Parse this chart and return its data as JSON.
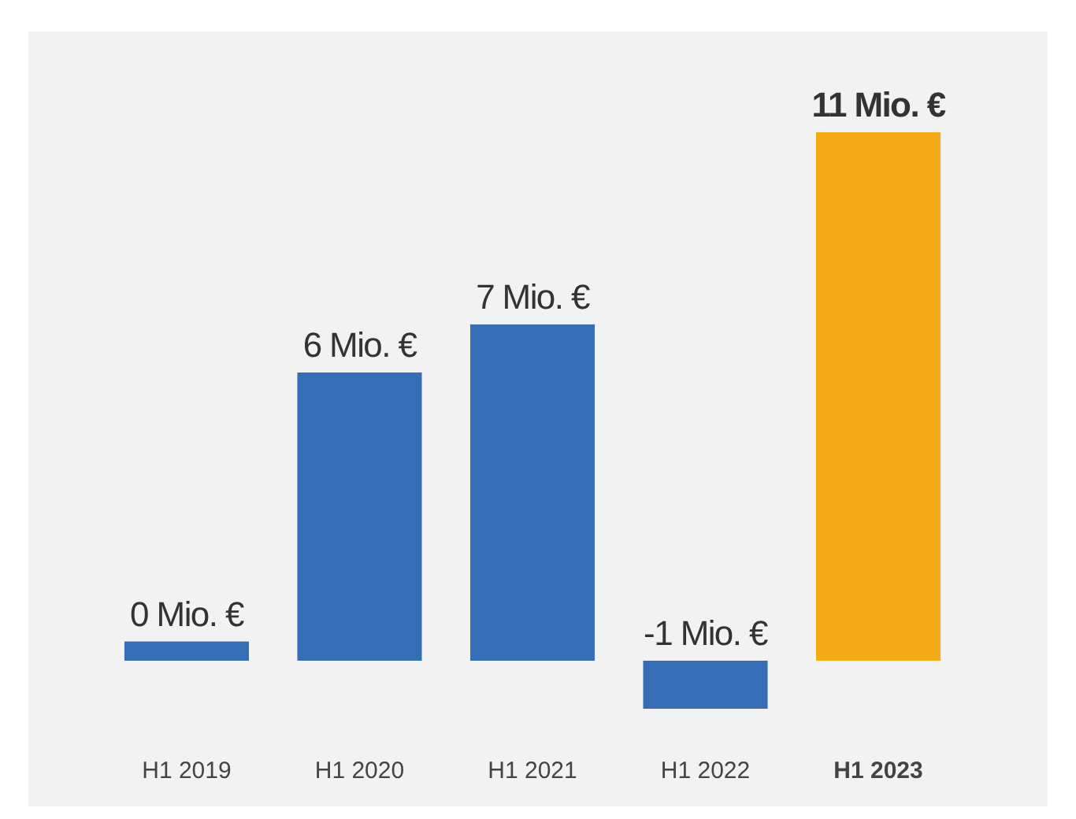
{
  "chart_data": {
    "type": "bar",
    "categories": [
      "H1 2019",
      "H1 2020",
      "H1 2021",
      "H1 2022",
      "H1 2023"
    ],
    "values": [
      0.4,
      6,
      7,
      -1,
      11
    ],
    "colors": [
      "#356eb6",
      "#356eb6",
      "#356eb6",
      "#356eb6",
      "#f6ab16"
    ],
    "value_labels": [
      "0 Mio. €",
      "6 Mio. €",
      "7 Mio. €",
      "-1 Mio. €",
      "11 Mio. €"
    ]
  }
}
